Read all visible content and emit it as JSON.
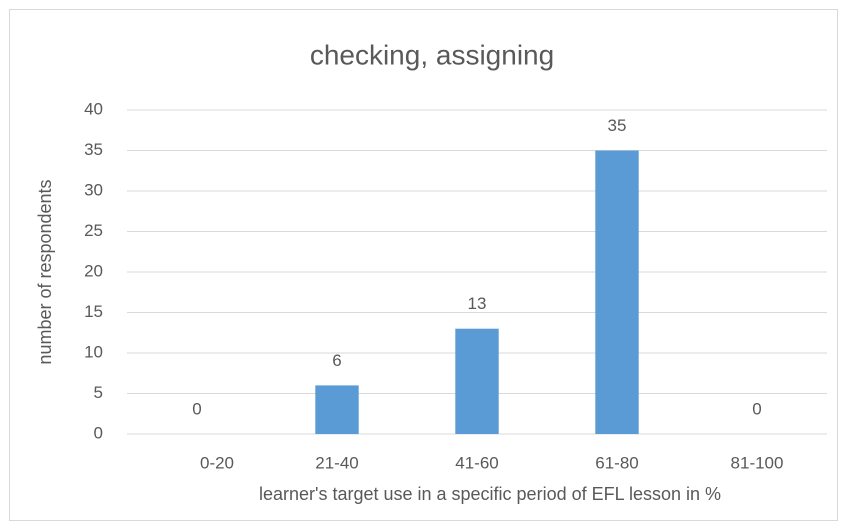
{
  "chart_data": {
    "type": "bar",
    "title": "checking, assigning",
    "x_label": "learner's target use in a specific period of EFL lesson in %",
    "y_label": "number of respondents",
    "categories": [
      "0-20",
      "21-40",
      "41-60",
      "61-80",
      "81-100"
    ],
    "values": [
      0,
      6,
      13,
      35,
      0
    ],
    "color": "#5b9bd5",
    "ylim": [
      0,
      40
    ],
    "yticks": [
      0,
      5,
      10,
      15,
      20,
      25,
      30,
      35,
      40
    ],
    "grid": true
  }
}
